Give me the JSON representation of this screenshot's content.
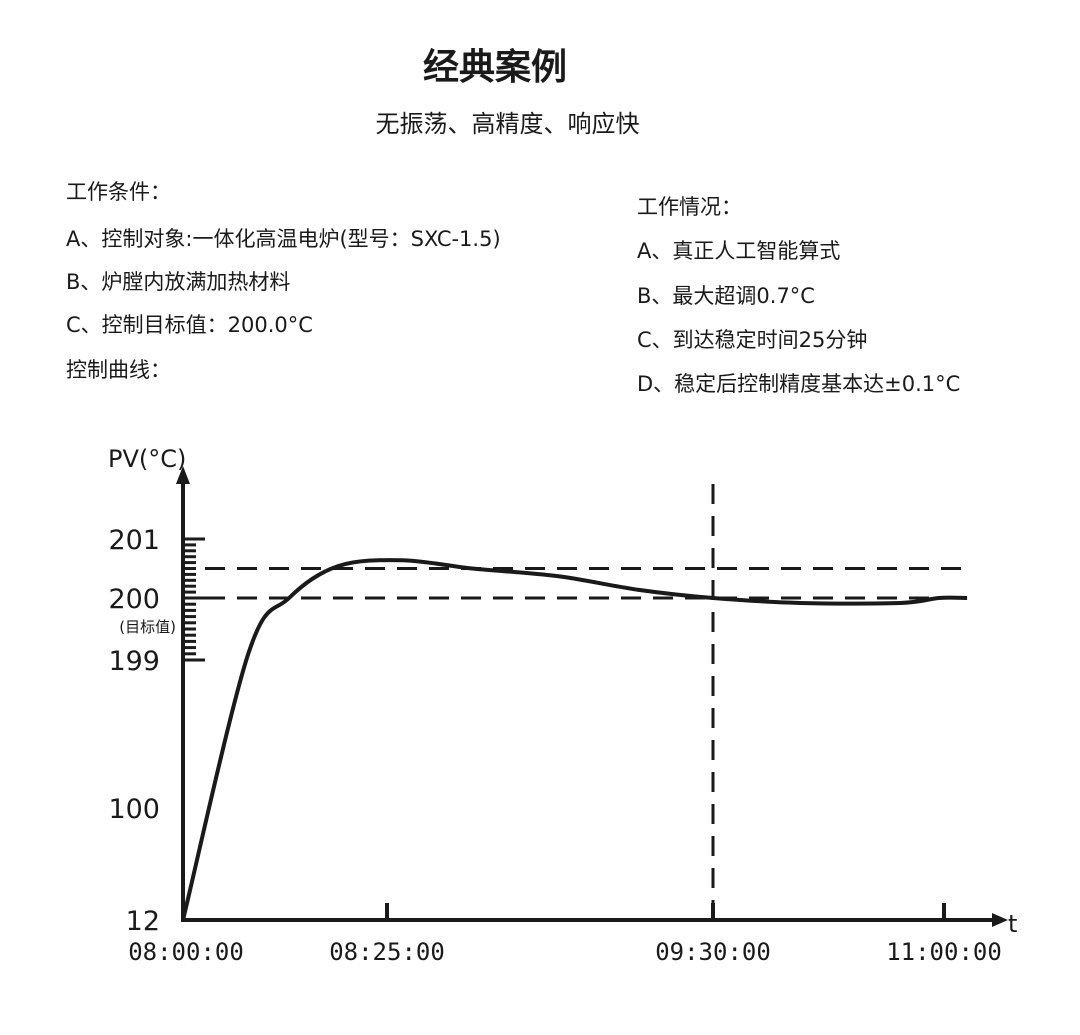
{
  "header": {
    "title": "经典案例",
    "subtitle": "无振荡、高精度、响应快"
  },
  "conditions": {
    "heading": "工作条件：",
    "items": [
      "A、控制对象:一体化高温电炉(型号：SXC-1.5)",
      "B、炉膛内放满加热材料",
      "C、控制目标值：200.0°C"
    ],
    "curve_heading": "控制曲线："
  },
  "status": {
    "heading": "工作情况：",
    "items": [
      "A、真正人工智能算式",
      "B、最大超调0.7°C",
      "C、到达稳定时间25分钟",
      "D、稳定后控制精度基本达±0.1°C"
    ]
  },
  "chart_data": {
    "type": "line",
    "ylabel": "PV(°C)",
    "xlabel": "t",
    "y_ticks": [
      {
        "value": 12,
        "label": "12"
      },
      {
        "value": 100,
        "label": "100"
      },
      {
        "value": 199,
        "label": "199"
      },
      {
        "value": 200,
        "label": "200",
        "sublabel": "(目标值)"
      },
      {
        "value": 201,
        "label": "201"
      }
    ],
    "x_ticks": [
      "08:00:00",
      "08:25:00",
      "09:30:00",
      "11:00:00"
    ],
    "minor_y_tick_step": 0.1,
    "reference_lines": {
      "horizontal": [
        200,
        200.5
      ],
      "vertical": [
        "09:30:00"
      ],
      "style": "dashed"
    },
    "series": [
      {
        "x": [
          "08:00",
          "08:08",
          "08:13",
          "08:19",
          "08:28",
          "08:42",
          "08:59",
          "09:15",
          "09:30",
          "10:04",
          "10:43",
          "10:58",
          "11:09"
        ],
        "y": [
          12,
          199.1,
          200,
          200.54,
          200.64,
          200.5,
          200.37,
          200.14,
          200,
          199.92,
          199.92,
          200,
          200
        ]
      }
    ],
    "color": "#1a1a1a"
  }
}
